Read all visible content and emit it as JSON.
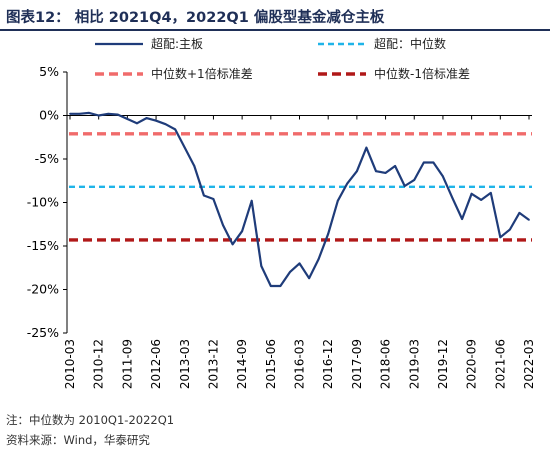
{
  "figure": {
    "title": "图表12：  相比 2021Q4，2022Q1 偏股型基金减仓主板",
    "notes": [
      "注：中位数为 2010Q1-2022Q1",
      "资料来源：Wind，华泰研究"
    ],
    "colors": {
      "title": "#1f2f57",
      "main_series": "#1f3c7a",
      "median": "#1fb4e8",
      "plus_std": "#f06b6b",
      "minus_std": "#b01818"
    }
  },
  "chart_data": {
    "type": "line",
    "title": "",
    "xlabel": "",
    "ylabel": "",
    "ylim": [
      -25,
      5
    ],
    "yticks": [
      "5%",
      "0%",
      "-5%",
      "-10%",
      "-15%",
      "-20%",
      "-25%"
    ],
    "ytick_values": [
      5,
      0,
      -5,
      -10,
      -15,
      -20,
      -25
    ],
    "grid": false,
    "legend_position": "top",
    "x_tick_labels": [
      "2010-03",
      "2010-12",
      "2011-09",
      "2012-06",
      "2013-03",
      "2013-12",
      "2014-09",
      "2015-06",
      "2016-03",
      "2016-12",
      "2017-09",
      "2018-06",
      "2019-03",
      "2019-12",
      "2020-09",
      "2021-06",
      "2022-03"
    ],
    "x": [
      "2010-03",
      "2010-06",
      "2010-09",
      "2010-12",
      "2011-03",
      "2011-06",
      "2011-09",
      "2011-12",
      "2012-03",
      "2012-06",
      "2012-09",
      "2012-12",
      "2013-03",
      "2013-06",
      "2013-09",
      "2013-12",
      "2014-03",
      "2014-06",
      "2014-09",
      "2014-12",
      "2015-03",
      "2015-06",
      "2015-09",
      "2015-12",
      "2016-03",
      "2016-06",
      "2016-09",
      "2016-12",
      "2017-03",
      "2017-06",
      "2017-09",
      "2017-12",
      "2018-03",
      "2018-06",
      "2018-09",
      "2018-12",
      "2019-03",
      "2019-06",
      "2019-09",
      "2019-12",
      "2020-03",
      "2020-06",
      "2020-09",
      "2020-12",
      "2021-03",
      "2021-06",
      "2021-09",
      "2021-12",
      "2022-03"
    ],
    "series": [
      {
        "name": "超配:主板",
        "style": "solid",
        "values": [
          0.2,
          0.2,
          0.3,
          0.0,
          0.2,
          0.1,
          -0.4,
          -0.9,
          -0.3,
          -0.6,
          -1.0,
          -1.6,
          -3.7,
          -5.8,
          -9.2,
          -9.6,
          -12.6,
          -14.8,
          -13.3,
          -9.8,
          -17.3,
          -19.6,
          -19.6,
          -18.0,
          -17.0,
          -18.7,
          -16.5,
          -13.6,
          -9.8,
          -7.8,
          -6.4,
          -3.7,
          -6.4,
          -6.6,
          -5.8,
          -8.1,
          -7.4,
          -5.4,
          -5.4,
          -7.0,
          -9.5,
          -11.9,
          -9.0,
          -9.7,
          -8.9,
          -14.0,
          -13.1,
          -11.2,
          -12.0
        ]
      },
      {
        "name": "超配：中位数",
        "style": "dashed",
        "constant": -8.2
      },
      {
        "name": "中位数+1倍标准差",
        "style": "dashed",
        "constant": -2.1
      },
      {
        "name": "中位数-1倍标准差",
        "style": "dashed",
        "constant": -14.3
      }
    ]
  }
}
